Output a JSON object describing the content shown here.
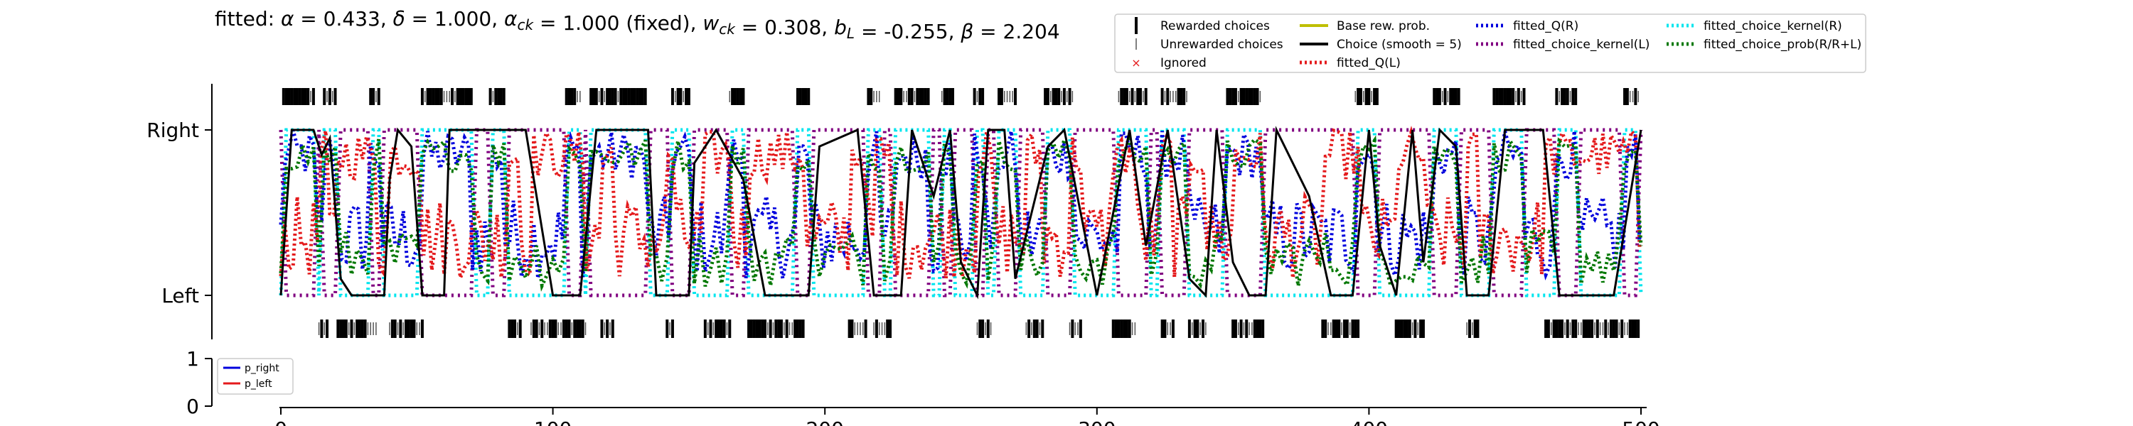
{
  "chart_data": [
    {
      "type": "line",
      "title_parts": [
        {
          "t": "fitted: "
        },
        {
          "t": "α",
          "it": true
        },
        {
          "t": " = 0.433, "
        },
        {
          "t": "δ",
          "it": true
        },
        {
          "t": " = 1.000, "
        },
        {
          "t": "α",
          "it": true
        },
        {
          "t": "ck",
          "it": true,
          "sub": true
        },
        {
          "t": " = 1.000 (fixed), "
        },
        {
          "t": "w",
          "it": true
        },
        {
          "t": "ck",
          "it": true,
          "sub": true
        },
        {
          "t": " = 0.308, "
        },
        {
          "t": "b",
          "it": true
        },
        {
          "t": "L",
          "it": true,
          "sub": true
        },
        {
          "t": " = -0.255, "
        },
        {
          "t": "β",
          "it": true
        },
        {
          "t": " = 2.204"
        }
      ],
      "y_tick_labels": [
        "Left",
        "Right"
      ],
      "xlim": [
        0,
        500
      ],
      "ylim": [
        -0.2,
        1.2
      ],
      "legend": {
        "position": "top-right",
        "entries": [
          {
            "label": "Rewarded choices",
            "style": "tick-bold",
            "color": "#000000"
          },
          {
            "label": "Unrewarded choices",
            "style": "tick-thin",
            "color": "#555555"
          },
          {
            "label": "Ignored",
            "style": "x",
            "color": "#e41a1c"
          },
          {
            "label": "Base rew. prob.",
            "style": "solid",
            "color": "#bfbf00"
          },
          {
            "label": "Choice (smooth = 5)",
            "style": "solid",
            "color": "#000000"
          },
          {
            "label": "fitted_Q(L)",
            "style": "dotted",
            "color": "#e41a1c"
          },
          {
            "label": "fitted_Q(R)",
            "style": "dotted",
            "color": "#0000dd"
          },
          {
            "label": "fitted_choice_kernel(L)",
            "style": "dotted",
            "color": "#800080"
          },
          {
            "label": "fitted_choice_kernel(R)",
            "style": "dotted",
            "color": "#00e5ee"
          },
          {
            "label": "fitted_choice_prob(R/R+L)",
            "style": "dotted",
            "color": "#007700"
          }
        ]
      },
      "series_colors": {
        "choice": "#000000",
        "q_left": "#e41a1c",
        "q_right": "#0000dd",
        "kernel_left": "#800080",
        "kernel_right": "#00e5ee",
        "choice_prob": "#007700"
      },
      "right_choice_blocks": [
        [
          1,
          12
        ],
        [
          16,
          20
        ],
        [
          33,
          36
        ],
        [
          52,
          70
        ],
        [
          77,
          82
        ],
        [
          105,
          110
        ],
        [
          114,
          134
        ],
        [
          144,
          150
        ],
        [
          165,
          170
        ],
        [
          190,
          194
        ],
        [
          216,
          220
        ],
        [
          226,
          238
        ],
        [
          243,
          247
        ],
        [
          255,
          258
        ],
        [
          264,
          270
        ],
        [
          281,
          291
        ],
        [
          308,
          318
        ],
        [
          324,
          333
        ],
        [
          348,
          360
        ],
        [
          395,
          403
        ],
        [
          424,
          433
        ],
        [
          446,
          457
        ],
        [
          469,
          476
        ],
        [
          494,
          499
        ]
      ],
      "left_choice_blocks": [
        [
          14,
          17
        ],
        [
          21,
          35
        ],
        [
          40,
          52
        ],
        [
          84,
          88
        ],
        [
          92,
          112
        ],
        [
          118,
          122
        ],
        [
          142,
          144
        ],
        [
          156,
          165
        ],
        [
          172,
          192
        ],
        [
          209,
          215
        ],
        [
          218,
          224
        ],
        [
          256,
          261
        ],
        [
          274,
          280
        ],
        [
          290,
          294
        ],
        [
          306,
          314
        ],
        [
          324,
          328
        ],
        [
          334,
          340
        ],
        [
          350,
          361
        ],
        [
          383,
          396
        ],
        [
          410,
          420
        ],
        [
          436,
          440
        ],
        [
          465,
          499
        ]
      ],
      "choice_smooth": [
        [
          0,
          0
        ],
        [
          4,
          1
        ],
        [
          12,
          1
        ],
        [
          15,
          0.85
        ],
        [
          18,
          0.95
        ],
        [
          22,
          0.1
        ],
        [
          26,
          0
        ],
        [
          38,
          0
        ],
        [
          40,
          0.7
        ],
        [
          43,
          1
        ],
        [
          48,
          0.9
        ],
        [
          52,
          0
        ],
        [
          60,
          0
        ],
        [
          62,
          1
        ],
        [
          90,
          1
        ],
        [
          95,
          0.5
        ],
        [
          100,
          0
        ],
        [
          110,
          0
        ],
        [
          116,
          1
        ],
        [
          135,
          1
        ],
        [
          138,
          0
        ],
        [
          150,
          0
        ],
        [
          152,
          0.8
        ],
        [
          160,
          1
        ],
        [
          170,
          0.7
        ],
        [
          178,
          0
        ],
        [
          194,
          0
        ],
        [
          198,
          0.9
        ],
        [
          212,
          1
        ],
        [
          218,
          0
        ],
        [
          228,
          0
        ],
        [
          232,
          1
        ],
        [
          240,
          0.6
        ],
        [
          246,
          1
        ],
        [
          250,
          0.2
        ],
        [
          256,
          0
        ],
        [
          260,
          1
        ],
        [
          266,
          1
        ],
        [
          270,
          0.1
        ],
        [
          282,
          0.9
        ],
        [
          288,
          1
        ],
        [
          300,
          0
        ],
        [
          312,
          1
        ],
        [
          318,
          0.3
        ],
        [
          326,
          1
        ],
        [
          334,
          0.1
        ],
        [
          340,
          0
        ],
        [
          344,
          1
        ],
        [
          350,
          0.2
        ],
        [
          356,
          0
        ],
        [
          362,
          0
        ],
        [
          366,
          1
        ],
        [
          378,
          0.6
        ],
        [
          386,
          0
        ],
        [
          394,
          0
        ],
        [
          400,
          1
        ],
        [
          404,
          0.3
        ],
        [
          410,
          0
        ],
        [
          416,
          1
        ],
        [
          420,
          0.2
        ],
        [
          426,
          1
        ],
        [
          432,
          0.9
        ],
        [
          436,
          0
        ],
        [
          444,
          0
        ],
        [
          450,
          1
        ],
        [
          464,
          1
        ],
        [
          470,
          0
        ],
        [
          490,
          0
        ],
        [
          494,
          0.4
        ],
        [
          500,
          1
        ]
      ],
      "ignored_trials": []
    },
    {
      "type": "line",
      "y_tick_labels": [
        "0",
        "1"
      ],
      "x_tick_labels": [
        "0",
        "100",
        "200",
        "300",
        "400",
        "500"
      ],
      "xlim": [
        0,
        500
      ],
      "ylim": [
        0,
        1
      ],
      "legend": {
        "position": "top-left",
        "entries": [
          {
            "label": "p_right",
            "color": "#0000dd"
          },
          {
            "label": "p_left",
            "color": "#e41a1c"
          }
        ]
      },
      "series": []
    }
  ]
}
